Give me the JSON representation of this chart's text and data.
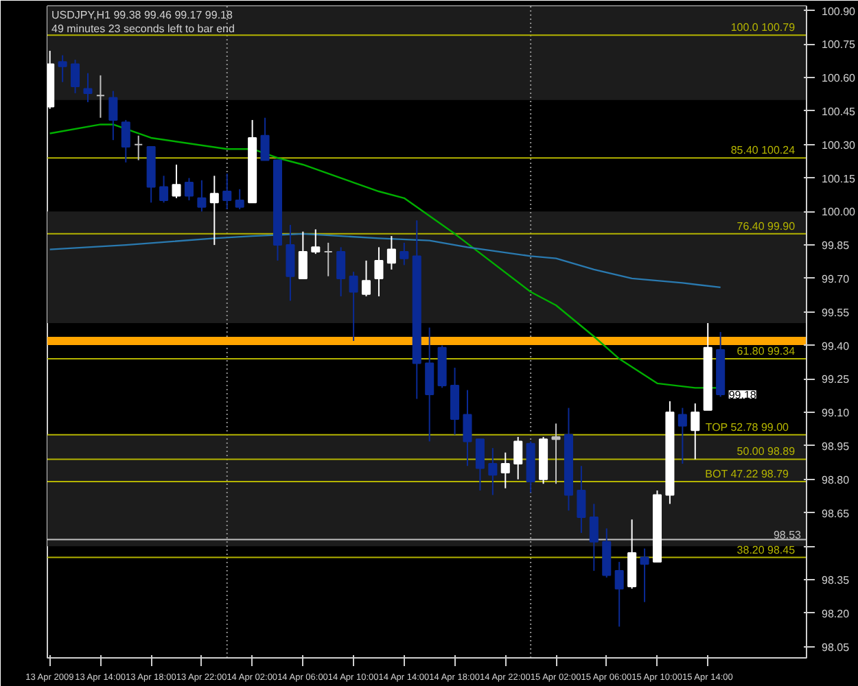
{
  "chart_data": {
    "type": "candlestick",
    "title": "USDJPY,H1  99.38 99.46 99.17 99.18",
    "subtitle": "49 minutes 23 seconds left to bar end",
    "x": [
      "2009-04-13T10:00",
      "2009-04-13T11:00",
      "2009-04-13T12:00",
      "2009-04-13T13:00",
      "2009-04-13T14:00",
      "2009-04-13T15:00",
      "2009-04-13T16:00",
      "2009-04-13T17:00",
      "2009-04-13T18:00",
      "2009-04-13T19:00",
      "2009-04-13T20:00",
      "2009-04-13T21:00",
      "2009-04-13T22:00",
      "2009-04-13T23:00",
      "2009-04-14T00:00",
      "2009-04-14T01:00",
      "2009-04-14T02:00",
      "2009-04-14T03:00",
      "2009-04-14T04:00",
      "2009-04-14T05:00",
      "2009-04-14T06:00",
      "2009-04-14T07:00",
      "2009-04-14T08:00",
      "2009-04-14T09:00",
      "2009-04-14T10:00",
      "2009-04-14T11:00",
      "2009-04-14T12:00",
      "2009-04-14T13:00",
      "2009-04-14T14:00",
      "2009-04-14T15:00",
      "2009-04-14T16:00",
      "2009-04-14T17:00",
      "2009-04-14T18:00",
      "2009-04-14T19:00",
      "2009-04-14T20:00",
      "2009-04-14T21:00",
      "2009-04-14T22:00",
      "2009-04-14T23:00",
      "2009-04-15T00:00",
      "2009-04-15T01:00",
      "2009-04-15T02:00",
      "2009-04-15T03:00",
      "2009-04-15T04:00",
      "2009-04-15T05:00",
      "2009-04-15T06:00",
      "2009-04-15T07:00",
      "2009-04-15T08:00",
      "2009-04-15T09:00",
      "2009-04-15T10:00",
      "2009-04-15T11:00",
      "2009-04-15T12:00",
      "2009-04-15T13:00",
      "2009-04-15T14:00",
      "2009-04-15T15:00"
    ],
    "ohlc": [
      [
        100.47,
        100.72,
        100.46,
        100.66
      ],
      [
        100.67,
        100.7,
        100.58,
        100.65
      ],
      [
        100.66,
        100.68,
        100.53,
        100.56
      ],
      [
        100.55,
        100.62,
        100.49,
        100.53
      ],
      [
        100.52,
        100.61,
        100.42,
        100.52
      ],
      [
        100.51,
        100.54,
        100.32,
        100.41
      ],
      [
        100.4,
        100.41,
        100.22,
        100.29
      ],
      [
        100.3,
        100.34,
        100.23,
        100.3
      ],
      [
        100.29,
        100.29,
        100.04,
        100.11
      ],
      [
        100.11,
        100.16,
        100.04,
        100.05
      ],
      [
        100.07,
        100.21,
        100.06,
        100.12
      ],
      [
        100.13,
        100.15,
        100.05,
        100.07
      ],
      [
        100.06,
        100.14,
        100.0,
        100.02
      ],
      [
        100.04,
        100.16,
        99.85,
        100.08
      ],
      [
        100.09,
        100.17,
        100.01,
        100.05
      ],
      [
        100.05,
        100.1,
        100.01,
        100.02
      ],
      [
        100.04,
        100.41,
        100.04,
        100.33
      ],
      [
        100.34,
        100.42,
        100.23,
        100.23
      ],
      [
        100.23,
        100.23,
        99.78,
        99.85
      ],
      [
        99.85,
        99.94,
        99.6,
        99.71
      ],
      [
        99.7,
        99.91,
        99.7,
        99.82
      ],
      [
        99.82,
        99.92,
        99.81,
        99.84
      ],
      [
        99.82,
        99.86,
        99.71,
        99.82
      ],
      [
        99.82,
        99.84,
        99.62,
        99.7
      ],
      [
        99.71,
        99.73,
        99.42,
        99.64
      ],
      [
        99.63,
        99.78,
        99.62,
        99.69
      ],
      [
        99.7,
        99.84,
        99.62,
        99.78
      ],
      [
        99.77,
        99.89,
        99.74,
        99.83
      ],
      [
        99.82,
        99.86,
        99.76,
        99.79
      ],
      [
        99.8,
        99.96,
        99.16,
        99.32
      ],
      [
        99.32,
        99.48,
        98.97,
        99.18
      ],
      [
        99.39,
        99.4,
        99.21,
        99.22
      ],
      [
        99.22,
        99.3,
        99.0,
        99.07
      ],
      [
        99.09,
        99.2,
        98.86,
        98.97
      ],
      [
        98.98,
        98.98,
        98.75,
        98.85
      ],
      [
        98.87,
        98.94,
        98.73,
        98.82
      ],
      [
        98.83,
        98.92,
        98.76,
        98.87
      ],
      [
        98.87,
        98.99,
        98.8,
        98.97
      ],
      [
        98.96,
        98.97,
        98.74,
        98.79
      ],
      [
        98.8,
        98.99,
        98.78,
        98.98
      ],
      [
        98.98,
        99.05,
        98.78,
        98.99
      ],
      [
        99.0,
        99.12,
        98.66,
        98.73
      ],
      [
        98.75,
        98.86,
        98.56,
        98.63
      ],
      [
        98.63,
        98.69,
        98.39,
        98.52
      ],
      [
        98.52,
        98.58,
        98.36,
        98.37
      ],
      [
        98.39,
        98.43,
        98.14,
        98.31
      ],
      [
        98.32,
        98.62,
        98.31,
        98.47
      ],
      [
        98.45,
        98.49,
        98.25,
        98.42
      ],
      [
        98.43,
        98.75,
        98.43,
        98.73
      ],
      [
        98.73,
        99.15,
        98.69,
        99.1
      ],
      [
        99.09,
        99.12,
        98.87,
        99.04
      ],
      [
        99.02,
        99.14,
        98.89,
        99.1
      ],
      [
        99.11,
        99.5,
        99.11,
        99.39
      ],
      [
        99.38,
        99.46,
        99.17,
        99.18
      ]
    ],
    "colors": [
      "#ffffff",
      "#0a2a96",
      "#0a2a96",
      "#0a2a96",
      "#c0c0c0",
      "#0a2a96",
      "#0a2a96",
      "#c0c0c0",
      "#0a2a96",
      "#0a2a96",
      "#ffffff",
      "#0a2a96",
      "#0a2a96",
      "#ffffff",
      "#0a2a96",
      "#0a2a96",
      "#ffffff",
      "#0a2a96",
      "#0a2a96",
      "#0a2a96",
      "#ffffff",
      "#ffffff",
      "#c0c0c0",
      "#0a2a96",
      "#0a2a96",
      "#ffffff",
      "#ffffff",
      "#ffffff",
      "#0a2a96",
      "#0a2a96",
      "#0a2a96",
      "#0a2a96",
      "#0a2a96",
      "#0a2a96",
      "#0a2a96",
      "#0a2a96",
      "#ffffff",
      "#ffffff",
      "#0a2a96",
      "#ffffff",
      "#c0c0c0",
      "#0a2a96",
      "#0a2a96",
      "#0a2a96",
      "#0a2a96",
      "#0a2a96",
      "#ffffff",
      "#0a2a96",
      "#ffffff",
      "#ffffff",
      "#0a2a96",
      "#ffffff",
      "#ffffff",
      "#0a2a96"
    ],
    "series": [
      {
        "type": "line",
        "color": "#00b000",
        "x": [
          "2009-04-13T10:00",
          "2009-04-13T14:00",
          "2009-04-13T15:00",
          "2009-04-13T18:00",
          "2009-04-14T00:00",
          "2009-04-14T02:00",
          "2009-04-14T04:00",
          "2009-04-14T06:00",
          "2009-04-14T10:00",
          "2009-04-14T12:00",
          "2009-04-14T14:00",
          "2009-04-14T18:00",
          "2009-04-15T00:00",
          "2009-04-15T02:00",
          "2009-04-15T05:00",
          "2009-04-15T07:00",
          "2009-04-15T10:00",
          "2009-04-15T13:00",
          "2009-04-15T15:00"
        ],
        "values": [
          100.35,
          100.39,
          100.39,
          100.33,
          100.28,
          100.28,
          100.24,
          100.21,
          100.13,
          100.09,
          100.06,
          99.9,
          99.64,
          99.58,
          99.44,
          99.34,
          99.23,
          99.21,
          99.21
        ]
      },
      {
        "type": "line",
        "color": "#2a7ab0",
        "x": [
          "2009-04-13T10:00",
          "2009-04-13T16:00",
          "2009-04-13T23:00",
          "2009-04-14T02:00",
          "2009-04-14T06:00",
          "2009-04-14T12:00",
          "2009-04-14T16:00",
          "2009-04-14T19:00",
          "2009-04-15T00:00",
          "2009-04-15T02:00",
          "2009-04-15T05:00",
          "2009-04-15T08:00",
          "2009-04-15T12:00",
          "2009-04-15T15:00"
        ],
        "values": [
          99.83,
          99.85,
          99.88,
          99.89,
          99.9,
          99.88,
          99.87,
          99.84,
          99.8,
          99.79,
          99.74,
          99.7,
          99.68,
          99.66
        ]
      }
    ],
    "xlim": [
      "2009-04-13T09:48",
      "2009-04-15T21:48"
    ],
    "xticks": [
      {
        "value": "2009-04-13T10:00",
        "label": "13 Apr 2009"
      },
      {
        "value": "2009-04-13T14:00",
        "label": "13 Apr 14:00"
      },
      {
        "value": "2009-04-13T18:00",
        "label": "13 Apr 18:00"
      },
      {
        "value": "2009-04-13T22:00",
        "label": "13 Apr 22:00"
      },
      {
        "value": "2009-04-14T02:00",
        "label": "14 Apr 02:00"
      },
      {
        "value": "2009-04-14T06:00",
        "label": "14 Apr 06:00"
      },
      {
        "value": "2009-04-14T10:00",
        "label": "14 Apr 10:00"
      },
      {
        "value": "2009-04-14T14:00",
        "label": "14 Apr 14:00"
      },
      {
        "value": "2009-04-14T18:00",
        "label": "14 Apr 18:00"
      },
      {
        "value": "2009-04-14T22:00",
        "label": "14 Apr 22:00"
      },
      {
        "value": "2009-04-15T02:00",
        "label": "15 Apr 02:00"
      },
      {
        "value": "2009-04-15T06:00",
        "label": "15 Apr 06:00"
      },
      {
        "value": "2009-04-15T10:00",
        "label": "15 Apr 10:00"
      },
      {
        "value": "2009-04-15T14:00",
        "label": "15 Apr 14:00"
      }
    ],
    "ylim": [
      98.0,
      100.92
    ],
    "yticks": [
      98.05,
      {
        "value": 98.2,
        "label": "98.20"
      },
      98.35,
      {
        "value": 98.5,
        "label": null
      },
      98.65,
      {
        "value": 98.8,
        "label": "98.80"
      },
      98.95,
      {
        "value": 99.1,
        "label": "99.10"
      },
      99.25,
      {
        "value": 99.4,
        "label": "99.40"
      },
      99.55,
      {
        "value": 99.7,
        "label": "99.70"
      },
      99.85,
      {
        "value": 100.0,
        "label": "100.00"
      },
      100.15,
      {
        "value": 100.3,
        "label": "100.30"
      },
      100.45,
      {
        "value": 100.6,
        "label": "100.60"
      },
      100.75,
      {
        "value": 100.9,
        "label": "100.90"
      }
    ],
    "bands": [
      {
        "axis": "y",
        "from": 100.5,
        "to": 100.92,
        "color": "#1c1c1c"
      },
      {
        "axis": "y",
        "from": 99.5,
        "to": 100.0,
        "color": "#1c1c1c"
      },
      {
        "axis": "y",
        "from": 98.5,
        "to": 99.0,
        "color": "#1c1c1c"
      }
    ],
    "ref_lines": [
      {
        "axis": "x",
        "value": "2009-04-14T00:00",
        "color": "#909090",
        "line_style": "dotted"
      },
      {
        "axis": "x",
        "value": "2009-04-15T00:00",
        "color": "#909090",
        "line_style": "dotted"
      },
      {
        "axis": "y",
        "value": 100.79,
        "label": "100.0   100.79",
        "color": "#b4b400"
      },
      {
        "axis": "y",
        "value": 100.24,
        "label": "85.40   100.24",
        "color": "#b4b400"
      },
      {
        "axis": "y",
        "value": 99.9,
        "label": "76.40   99.90",
        "color": "#b4b400"
      },
      {
        "axis": "y",
        "value": 99.42,
        "color": "#ffa500"
      },
      {
        "axis": "y",
        "value": 99.34,
        "label": "61.80   99.34",
        "color": "#b4b400"
      },
      {
        "axis": "y",
        "value": 99.0,
        "label": "TOP   52.78   99.00",
        "color": "#b4b400"
      },
      {
        "axis": "y",
        "value": 98.89,
        "label": "50.00   98.89",
        "color": "#b4b400"
      },
      {
        "axis": "y",
        "value": 98.79,
        "label": "BOT   47.22   98.79",
        "color": "#b4b400"
      },
      {
        "axis": "y",
        "value": 98.53,
        "label": "98.53",
        "color": "#c0c0c0"
      },
      {
        "axis": "y",
        "value": 98.45,
        "label": "38.20   98.45",
        "color": "#b4b400"
      }
    ],
    "annotations": [
      {
        "text": "99.18",
        "x": "2009-04-15T15:00",
        "y": 99.18
      }
    ]
  }
}
